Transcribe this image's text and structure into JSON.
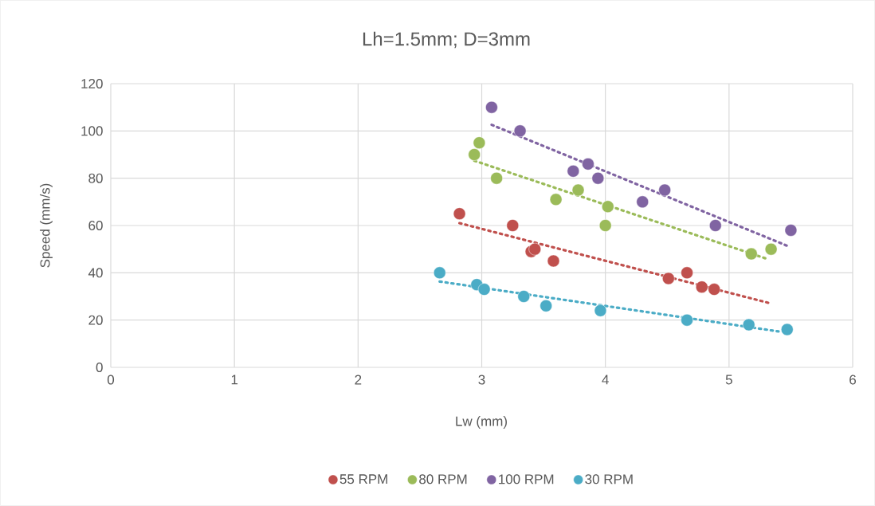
{
  "chart_data": {
    "type": "scatter",
    "title": "Lh=1.5mm; D=3mm",
    "xlabel": "Lw (mm)",
    "ylabel": "Speed (mm/s)",
    "xlim": [
      0,
      6
    ],
    "ylim": [
      0,
      120
    ],
    "xticks": [
      0,
      1,
      2,
      3,
      4,
      5,
      6
    ],
    "yticks": [
      0,
      20,
      40,
      60,
      80,
      100,
      120
    ],
    "grid": true,
    "legend": "bottom",
    "marker": "circle",
    "series": [
      {
        "name": "55 RPM",
        "color": "#c0504d",
        "x": [
          2.82,
          3.25,
          3.4,
          3.43,
          3.58,
          4.51,
          4.66,
          4.78,
          4.88
        ],
        "values": [
          65,
          60,
          49,
          50,
          45,
          37.6,
          40,
          34,
          33
        ]
      },
      {
        "name": "80 RPM",
        "color": "#9bbb59",
        "x": [
          2.94,
          2.98,
          3.12,
          3.6,
          3.78,
          4.02,
          4.0,
          5.18,
          5.34
        ],
        "values": [
          90,
          95,
          80,
          71,
          75,
          68,
          60,
          48,
          50
        ]
      },
      {
        "name": "100 RPM",
        "color": "#8064a2",
        "x": [
          3.08,
          3.31,
          3.74,
          3.86,
          3.94,
          4.3,
          4.48,
          4.89,
          5.5
        ],
        "values": [
          110,
          100,
          83,
          86,
          80,
          70,
          75,
          60,
          58
        ]
      },
      {
        "name": "30 RPM",
        "color": "#4bacc6",
        "x": [
          2.66,
          2.96,
          3.02,
          3.34,
          3.52,
          3.96,
          4.66,
          5.16,
          5.47
        ],
        "values": [
          40,
          35,
          33,
          30,
          26,
          24,
          20,
          18,
          16
        ]
      },
      {
        "type": "line",
        "line_style": "dotted",
        "marker": "none",
        "color": "#c0504d",
        "x": [
          2.82,
          5.34
        ],
        "values": [
          61,
          27
        ]
      },
      {
        "type": "line",
        "line_style": "dotted",
        "marker": "none",
        "color": "#9bbb59",
        "x": [
          2.94,
          5.3
        ],
        "values": [
          87.4,
          46
        ]
      },
      {
        "type": "line",
        "line_style": "dotted",
        "marker": "none",
        "color": "#8064a2",
        "x": [
          3.08,
          5.49
        ],
        "values": [
          102.6,
          51
        ]
      },
      {
        "type": "line",
        "line_style": "dotted",
        "marker": "none",
        "color": "#4bacc6",
        "x": [
          2.66,
          5.4
        ],
        "values": [
          36.3,
          15.2
        ]
      }
    ]
  }
}
